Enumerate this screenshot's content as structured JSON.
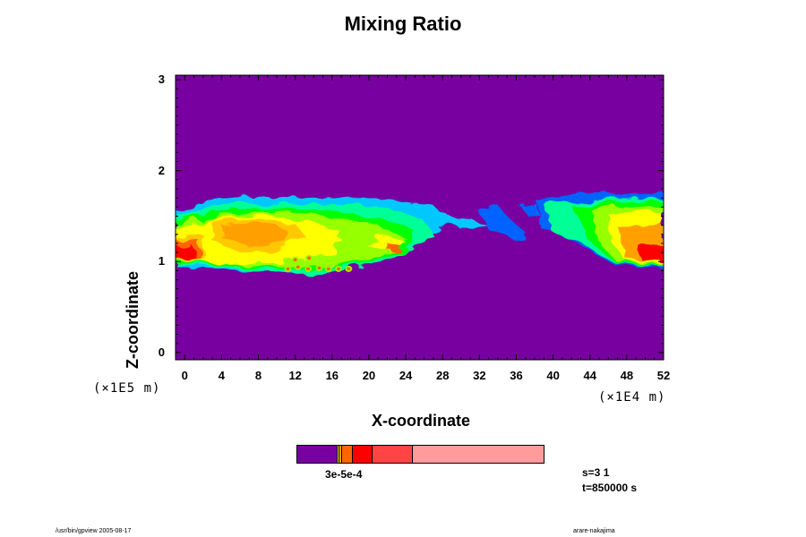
{
  "chart_data": {
    "type": "heatmap",
    "title": "Mixing Ratio",
    "xlabel": "X-coordinate",
    "ylabel": "Z-coordinate",
    "x_unit_label": "(×1E4 m)",
    "y_unit_label": "(×1E5 m)",
    "x_ticks": [
      "0",
      "4",
      "8",
      "12",
      "16",
      "20",
      "24",
      "28",
      "32",
      "36",
      "40",
      "44",
      "48",
      "52"
    ],
    "y_ticks": [
      "0",
      "1",
      "2",
      "3"
    ],
    "xlim": [
      -1,
      52
    ],
    "ylim": [
      -0.08,
      3.05
    ],
    "background_color": "#7800A0",
    "layer": {
      "z_bottom": 0.95,
      "z_top": 1.72
    },
    "colorbar": {
      "colors": [
        "#7800A0",
        "#FFFF00",
        "#FFA000",
        "#FF6600",
        "#FF0000",
        "#FF4444",
        "#FF9B9B"
      ],
      "tick_label": "3e-5e-4"
    }
  },
  "info": {
    "step": "s=3 1",
    "time": "t=850000 s"
  },
  "footer": {
    "left": "/usr/bin/gpview 2005-08-17",
    "right": "arare-nakajima"
  }
}
